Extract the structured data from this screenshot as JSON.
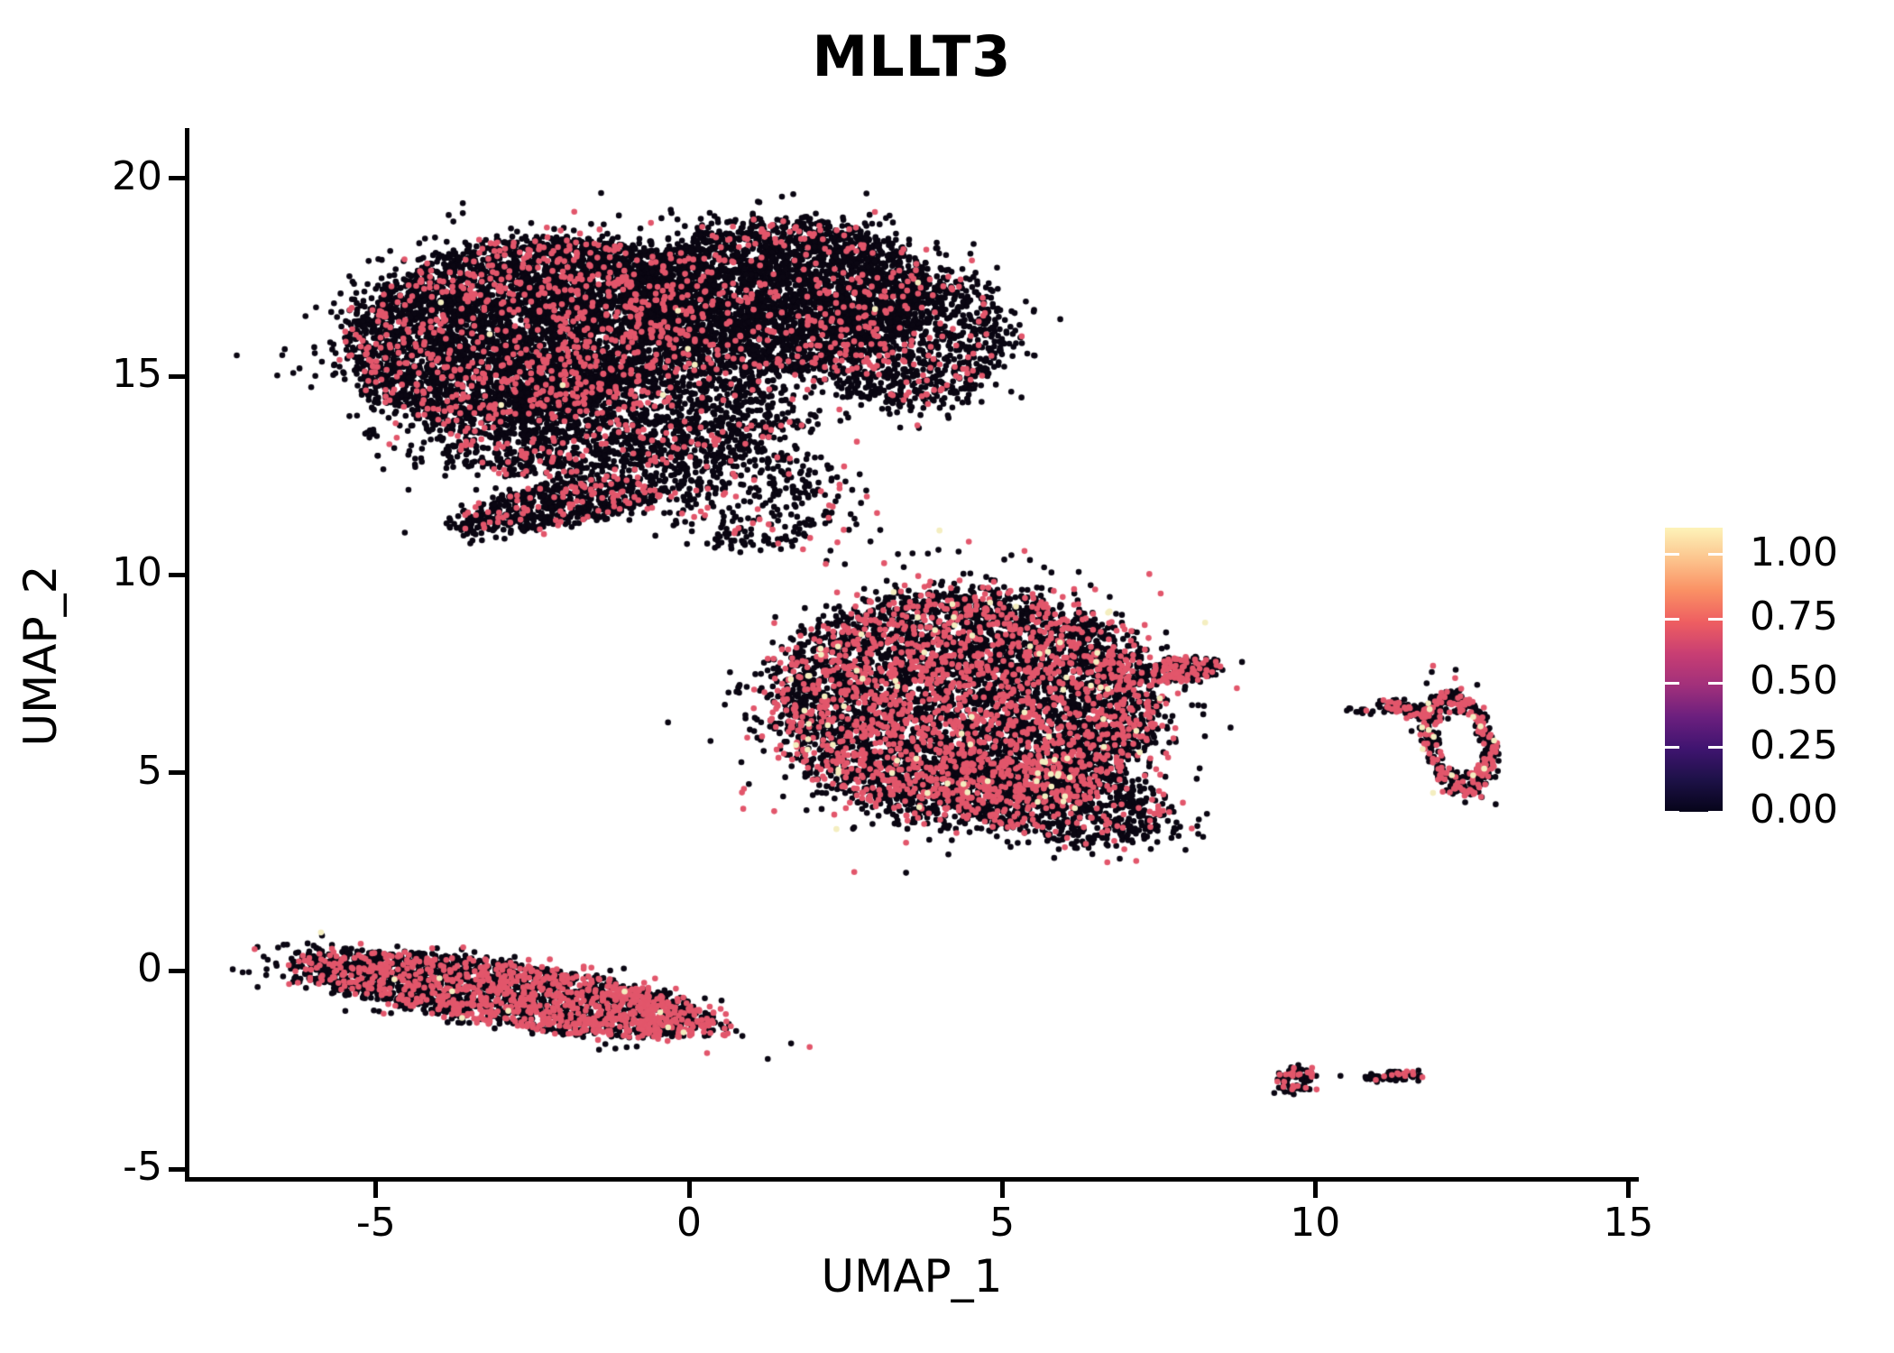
{
  "title": "MLLT3",
  "axes": {
    "x": {
      "label": "UMAP_1",
      "min": -7.98,
      "max": 15.1,
      "ticks": [
        {
          "value": -5,
          "label": "-5"
        },
        {
          "value": 0,
          "label": "0"
        },
        {
          "value": 5,
          "label": "5"
        },
        {
          "value": 10,
          "label": "10"
        },
        {
          "value": 15,
          "label": "15"
        }
      ]
    },
    "y": {
      "label": "UMAP_2",
      "min": -5.2,
      "max": 21.3,
      "ticks": [
        {
          "value": 20,
          "label": "20"
        },
        {
          "value": 15,
          "label": "15"
        },
        {
          "value": 10,
          "label": "10"
        },
        {
          "value": 5,
          "label": "5"
        },
        {
          "value": 0,
          "label": "0"
        },
        {
          "value": -5,
          "label": "-5"
        }
      ]
    }
  },
  "legend": {
    "max_value": 1.105,
    "ticks": [
      {
        "value": 1.0,
        "label": "1.00"
      },
      {
        "value": 0.75,
        "label": "0.75"
      },
      {
        "value": 0.5,
        "label": "0.50"
      },
      {
        "value": 0.25,
        "label": "0.25"
      },
      {
        "value": 0.0,
        "label": "0.00"
      }
    ],
    "gradient_bottom_to_top": [
      "#060419",
      "#1d1147",
      "#3f1470",
      "#6b1f7e",
      "#a1307b",
      "#c83e73",
      "#ee5e61",
      "#fa9064",
      "#fcc48d",
      "#fdf3b9"
    ]
  },
  "chart_data": {
    "type": "scatter",
    "title": "MLLT3",
    "xlabel": "UMAP_1",
    "ylabel": "UMAP_2",
    "xlim": [
      -7.98,
      15.1
    ],
    "ylim": [
      -5.2,
      21.3
    ],
    "grid": false,
    "legend_position": "right",
    "expression_colors": {
      "low": "#0a0612",
      "mid": "#e2566b",
      "high": "#f4eec0"
    },
    "point_radius_px": 3.3,
    "clusters": [
      {
        "name": "top-left-lobe",
        "shape": "blob",
        "cx": -2.6,
        "cy": 16.2,
        "rx": 2.9,
        "ry": 2.2,
        "angle_deg": 25,
        "n": 5200,
        "pink_frac": 0.12,
        "yellow_frac": 0.0015,
        "halo_n": 170
      },
      {
        "name": "top-right-lobe",
        "shape": "blob",
        "cx": 1.4,
        "cy": 17.0,
        "rx": 2.4,
        "ry": 1.9,
        "angle_deg": 10,
        "n": 3300,
        "pink_frac": 0.1,
        "yellow_frac": 0.001,
        "halo_n": 130
      },
      {
        "name": "top-right-bump",
        "shape": "blob",
        "cx": 3.6,
        "cy": 15.9,
        "rx": 1.5,
        "ry": 1.75,
        "angle_deg": -15,
        "n": 950,
        "pink_frac": 0.1,
        "yellow_frac": 0.001,
        "halo_n": 60
      },
      {
        "name": "top-lower-fringe",
        "shape": "blob",
        "cx": -1.2,
        "cy": 13.8,
        "rx": 2.9,
        "ry": 1.3,
        "angle_deg": 8,
        "n": 1600,
        "pink_frac": 0.12,
        "yellow_frac": 0.001,
        "halo_n": 110
      },
      {
        "name": "bridge-wedge",
        "shape": "blob",
        "cx": -2.1,
        "cy": 11.75,
        "rx": 1.75,
        "ry": 0.52,
        "angle_deg": 16,
        "n": 620,
        "pink_frac": 0.15,
        "yellow_frac": 0,
        "halo_n": 40
      },
      {
        "name": "bridge-scatter",
        "shape": "blob",
        "cx": 0.95,
        "cy": 12.0,
        "rx": 1.55,
        "ry": 1.2,
        "angle_deg": -25,
        "n": 330,
        "pink_frac": 0.12,
        "yellow_frac": 0,
        "halo_n": 70
      },
      {
        "name": "middle-main",
        "shape": "blob",
        "cx": 4.45,
        "cy": 6.7,
        "rx": 3.05,
        "ry": 2.9,
        "angle_deg": -14,
        "n": 6300,
        "pink_frac": 0.27,
        "yellow_frac": 0.013,
        "halo_n": 200
      },
      {
        "name": "middle-right-beak",
        "shape": "blob",
        "cx": 7.9,
        "cy": 7.6,
        "rx": 0.55,
        "ry": 0.28,
        "angle_deg": 10,
        "n": 200,
        "pink_frac": 0.32,
        "yellow_frac": 0,
        "halo_n": 20
      },
      {
        "name": "middle-lower-fringe",
        "shape": "blob",
        "cx": 5.8,
        "cy": 4.3,
        "rx": 2.0,
        "ry": 0.95,
        "angle_deg": -18,
        "n": 760,
        "pink_frac": 0.2,
        "yellow_frac": 0.004,
        "halo_n": 60
      },
      {
        "name": "middle-stray-dot",
        "shape": "blob",
        "cx": 4.95,
        "cy": 3.8,
        "rx": 0.02,
        "ry": 0.02,
        "angle_deg": 0,
        "n": 1,
        "pink_frac": 0,
        "yellow_frac": 0,
        "halo_n": 0
      },
      {
        "name": "right-ring",
        "shape": "ring",
        "cx": 12.3,
        "cy": 5.75,
        "rx": 0.55,
        "ry": 1.3,
        "angle_deg": 8,
        "inner": 0.55,
        "n": 430,
        "pink_frac": 0.32,
        "yellow_frac": 0.025,
        "halo_n": 25
      },
      {
        "name": "right-ring-arm",
        "shape": "blob",
        "cx": 11.45,
        "cy": 6.6,
        "rx": 0.45,
        "ry": 0.15,
        "angle_deg": -20,
        "n": 95,
        "pink_frac": 0.3,
        "yellow_frac": 0,
        "halo_n": 8
      },
      {
        "name": "right-ring-tail",
        "shape": "blob",
        "cx": 10.78,
        "cy": 6.55,
        "rx": 0.38,
        "ry": 0.07,
        "angle_deg": -5,
        "n": 14,
        "pink_frac": 0.1,
        "yellow_frac": 0,
        "halo_n": 0
      },
      {
        "name": "bottom-left-strip",
        "shape": "blob",
        "cx": -2.9,
        "cy": -0.58,
        "rx": 3.45,
        "ry": 0.78,
        "angle_deg": -13,
        "n": 2500,
        "pink_frac": 0.16,
        "pink_frac_end": 0.58,
        "yellow_frac": 0.004,
        "halo_n": 80
      },
      {
        "name": "bottom-right-blob",
        "shape": "blob",
        "cx": 9.7,
        "cy": -2.75,
        "rx": 0.3,
        "ry": 0.35,
        "angle_deg": 0,
        "n": 75,
        "pink_frac": 0.28,
        "yellow_frac": 0,
        "halo_n": 6
      },
      {
        "name": "bottom-right-dot",
        "shape": "blob",
        "cx": 10.4,
        "cy": -2.65,
        "rx": 0.02,
        "ry": 0.02,
        "angle_deg": 0,
        "n": 1,
        "pink_frac": 0,
        "yellow_frac": 0,
        "halo_n": 0
      },
      {
        "name": "bottom-right-dash",
        "shape": "blob",
        "cx": 11.25,
        "cy": -2.65,
        "rx": 0.47,
        "ry": 0.12,
        "angle_deg": 5,
        "n": 70,
        "pink_frac": 0.05,
        "pink_frac_end": 0.35,
        "yellow_frac": 0,
        "halo_n": 4
      }
    ]
  }
}
